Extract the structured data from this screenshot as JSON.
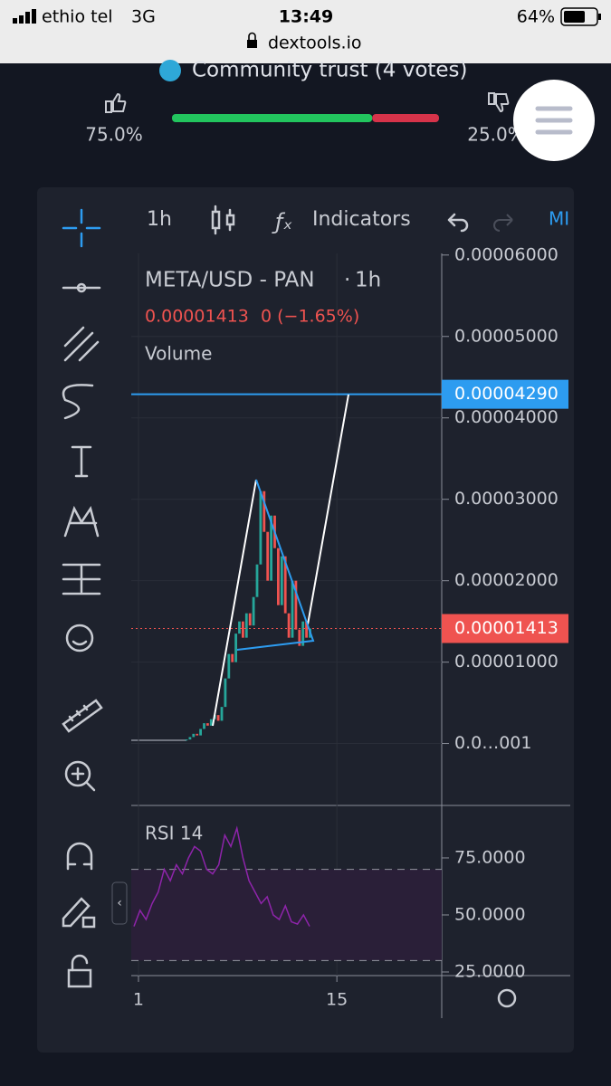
{
  "status_bar": {
    "carrier": "ethio tel",
    "network": "3G",
    "time": "13:49",
    "battery": "64%",
    "url": "dextools.io"
  },
  "community_trust": {
    "title": "Community trust (4 votes)",
    "up": {
      "value": 75,
      "label": "75.0%"
    },
    "down": {
      "value": 25,
      "label": "25.0%"
    }
  },
  "toolbar": {
    "interval": "1h",
    "indicators": "Indicators",
    "extra": "MI"
  },
  "chart": {
    "symbol": "META/USD - PAN",
    "interval": "1h",
    "change": "0 (−1.65%)",
    "volume_label": "Volume",
    "ylim": [
      -7.6e-06,
      6.02e-05
    ],
    "yticks": [
      {
        "value": 6e-05,
        "label": "0.00006000"
      },
      {
        "value": 5e-05,
        "label": "0.00005000"
      },
      {
        "value": 4e-05,
        "label": "0.00004000"
      },
      {
        "value": 3e-05,
        "label": "0.00003000"
      },
      {
        "value": 2e-05,
        "label": "0.00002000"
      },
      {
        "value": 1e-05,
        "label": "0.00001000"
      },
      {
        "value": 1e-08,
        "label": "0.0…001"
      }
    ],
    "line_price": {
      "value": 4.29e-05,
      "label": "0.00004290"
    },
    "last_price": {
      "value": 1.413e-05,
      "label": "0.00001413"
    },
    "closes": [
      5e-07,
      8e-07,
      1.2e-06,
      1e-06,
      1.8e-06,
      2.5e-06,
      2.2e-06,
      3e-06,
      3.5e-06,
      2.8e-06,
      4.5e-06,
      8e-06,
      1.1e-05,
      1e-05,
      1.35e-05,
      1.5e-05,
      1.3e-05,
      1.6e-05,
      1.45e-05,
      1.8e-05,
      2.2e-05,
      3.1e-05,
      2.6e-05,
      2e-05,
      2.8e-05,
      2.4e-05,
      1.7e-05,
      2.3e-05,
      1.6e-05,
      1.3e-05,
      2e-05,
      1.4e-05,
      1.2e-05,
      1.5e-05,
      1.3e-05,
      1.413e-05
    ],
    "rsi_label": "RSI 14",
    "rsi_ylim": [
      24.6,
      98
    ],
    "rsi_yticks": [
      {
        "value": 75,
        "label": "75.0000"
      },
      {
        "value": 50,
        "label": "50.0000"
      },
      {
        "value": 25,
        "label": "25.0000"
      }
    ],
    "rsi_bands": [
      30,
      70
    ],
    "rsi": [
      45,
      52,
      48,
      55,
      60,
      70,
      65,
      72,
      68,
      75,
      80,
      78,
      70,
      68,
      72,
      85,
      80,
      88,
      75,
      65,
      60,
      55,
      58,
      50,
      48,
      54,
      47,
      46,
      50,
      45
    ],
    "xlim": [
      0.49,
      22.4
    ],
    "xticks": [
      1,
      15
    ]
  }
}
